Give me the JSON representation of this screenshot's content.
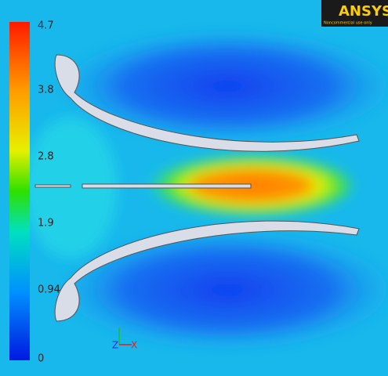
{
  "legend": {
    "labels": [
      "4.7",
      "3.8",
      "2.8",
      "1.9",
      "0.94",
      "0"
    ]
  },
  "logo": {
    "brand": "ANSYS",
    "note": "Noncommercial use only"
  },
  "triad": {
    "labels": [
      "Z",
      "X"
    ]
  }
}
